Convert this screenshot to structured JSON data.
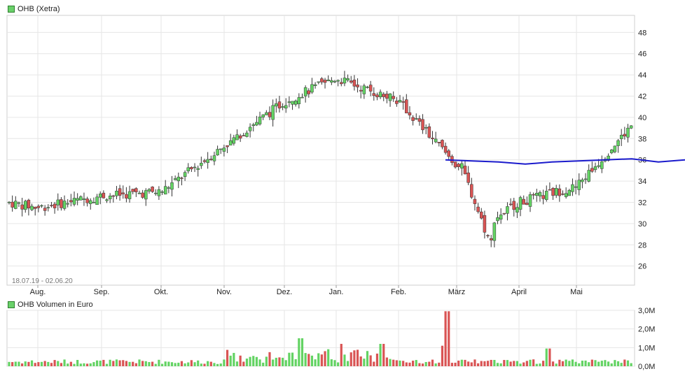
{
  "chart_data": [
    {
      "type": "candlestick",
      "title": "OHB (Xetra)",
      "date_range": "18.07.19 - 02.06.20",
      "x_ticks": [
        "Aug.",
        "Sep.",
        "Okt.",
        "Nov.",
        "Dez.",
        "Jan.",
        "Feb.",
        "März",
        "April",
        "Mai"
      ],
      "y_ticks": [
        26,
        28,
        30,
        32,
        34,
        36,
        38,
        40,
        42,
        44,
        46,
        48
      ],
      "ylim": [
        24.2,
        49.6
      ],
      "grid": true,
      "axis_position": "right",
      "series": [
        {
          "kind": "close_line",
          "points_monthly_start": [
            {
              "x": "Jul.",
              "close": 32.0
            },
            {
              "x": "Aug.",
              "close": 31.5
            },
            {
              "x": "Sep.",
              "close": 32.6
            },
            {
              "x": "Okt.",
              "close": 33.0
            },
            {
              "x": "Nov.",
              "close": 37.3
            },
            {
              "x": "Dez.",
              "close": 41.5
            },
            {
              "x": "Jan.",
              "close": 43.7
            },
            {
              "x": "Feb.",
              "close": 41.5
            },
            {
              "x": "März",
              "close": 35.5
            },
            {
              "x": "April",
              "close": 32.0
            },
            {
              "x": "Mai",
              "close": 33.5
            },
            {
              "x": "Jun.",
              "close": 39.5
            }
          ]
        },
        {
          "kind": "moving_average",
          "color": "#1a1acc",
          "values": [
            36.0,
            35.9,
            35.8,
            35.6,
            35.8,
            35.9,
            36.0,
            36.1,
            35.8,
            36.0
          ]
        }
      ],
      "colors": {
        "up": "#63d363",
        "down": "#d95454",
        "ma": "#1a1acc"
      }
    },
    {
      "type": "bar",
      "title": "OHB Volumen in Euro",
      "y_ticks": [
        "0,0M",
        "1,0M",
        "2,0M",
        "3,0M"
      ],
      "ylim": [
        0,
        3.0
      ],
      "unit": "M",
      "peaks": [
        {
          "x": "Dez.",
          "value": 1.5
        },
        {
          "x": "März",
          "value": 2.95
        },
        {
          "x": "Jan.",
          "value": 1.2
        }
      ],
      "colors": {
        "up": "#63d363",
        "down": "#d95454"
      }
    }
  ]
}
